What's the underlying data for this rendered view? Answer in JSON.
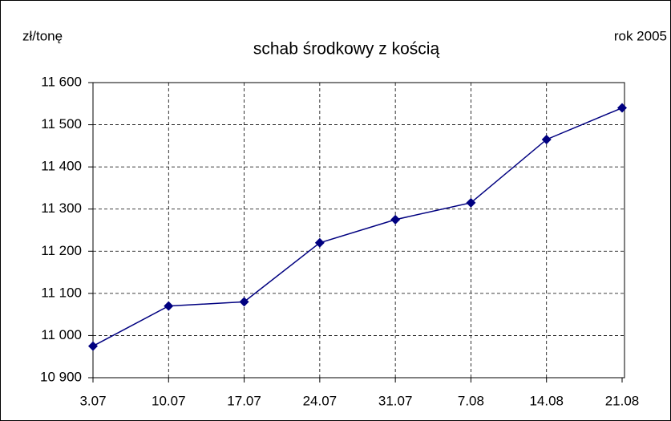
{
  "chart_data": {
    "type": "line",
    "title": "schab środkowy z kością",
    "y_label": "zł/tonę",
    "annotation": "rok 2005",
    "categories": [
      "3.07",
      "10.07",
      "17.07",
      "24.07",
      "31.07",
      "7.08",
      "14.08",
      "21.08"
    ],
    "series": [
      {
        "name": "schab środkowy z kością",
        "color": "#000080",
        "values": [
          10975,
          11070,
          11080,
          11220,
          11275,
          11315,
          11465,
          11540
        ]
      }
    ],
    "ylim": [
      10900,
      11600
    ],
    "yticks": [
      {
        "value": 10900,
        "label": "10 900"
      },
      {
        "value": 11000,
        "label": "11 000"
      },
      {
        "value": 11100,
        "label": "11 100"
      },
      {
        "value": 11200,
        "label": "11 200"
      },
      {
        "value": 11300,
        "label": "11 300"
      },
      {
        "value": 11400,
        "label": "11 400"
      },
      {
        "value": 11500,
        "label": "11 500"
      },
      {
        "value": 11600,
        "label": "11 600"
      }
    ],
    "grid": true
  }
}
